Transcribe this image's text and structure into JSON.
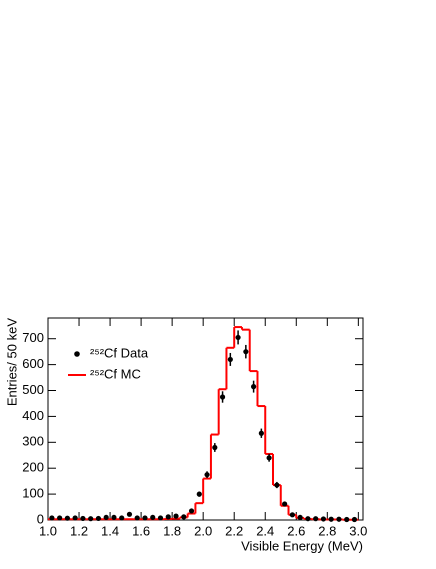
{
  "chart_data": {
    "type": "histogram",
    "xlabel": "Visible Energy (MeV)",
    "ylabel": "Entries/ 50 keV",
    "bins": [
      1.0,
      1.05,
      1.1,
      1.15,
      1.2,
      1.25,
      1.3,
      1.35,
      1.4,
      1.45,
      1.5,
      1.55,
      1.6,
      1.65,
      1.7,
      1.75,
      1.8,
      1.85,
      1.9,
      1.95,
      2.0,
      2.05,
      2.1,
      2.15,
      2.2,
      2.25,
      2.3,
      2.35,
      2.4,
      2.45,
      2.5,
      2.55,
      2.6,
      2.65,
      2.7,
      2.75,
      2.8,
      2.85,
      2.9,
      2.95,
      3.0
    ],
    "series": [
      {
        "name": "²⁵²Cf Data",
        "color": "#000000",
        "style": "points",
        "values": [
          8,
          8,
          7,
          8,
          6,
          5,
          6,
          10,
          10,
          8,
          22,
          8,
          8,
          10,
          8,
          12,
          15,
          12,
          35,
          100,
          175,
          280,
          475,
          620,
          705,
          650,
          515,
          335,
          240,
          135,
          62,
          20,
          10,
          5,
          5,
          4,
          3,
          3,
          2,
          2
        ],
        "errors": [
          3,
          3,
          3,
          3,
          2,
          2,
          2,
          3,
          3,
          3,
          5,
          3,
          3,
          3,
          3,
          3,
          4,
          3,
          6,
          10,
          13,
          17,
          22,
          25,
          27,
          26,
          23,
          18,
          15,
          12,
          8,
          4,
          3,
          2,
          2,
          2,
          2,
          2,
          1,
          1
        ]
      },
      {
        "name": "²⁵²Cf MC",
        "color": "#ff0000",
        "style": "step",
        "values": [
          3,
          3,
          3,
          3,
          3,
          3,
          3,
          3,
          3,
          3,
          3,
          3,
          3,
          3,
          3,
          4,
          5,
          10,
          25,
          65,
          160,
          330,
          505,
          665,
          745,
          735,
          575,
          440,
          255,
          135,
          55,
          20,
          8,
          4,
          3,
          2,
          2,
          2,
          1,
          1
        ]
      }
    ],
    "xlim": [
      1.0,
      3.03
    ],
    "ylim": [
      0,
      780
    ],
    "xticks": [
      {
        "value": 1.0,
        "label": "1.0"
      },
      {
        "value": 1.2,
        "label": "1.2"
      },
      {
        "value": 1.4,
        "label": "1.4"
      },
      {
        "value": 1.6,
        "label": "1.6"
      },
      {
        "value": 1.8,
        "label": "1.8"
      },
      {
        "value": 2.0,
        "label": "2.0"
      },
      {
        "value": 2.2,
        "label": "2.2"
      },
      {
        "value": 2.4,
        "label": "2.4"
      },
      {
        "value": 2.6,
        "label": "2.6"
      },
      {
        "value": 2.8,
        "label": "2.8"
      },
      {
        "value": 3.0,
        "label": "3.0"
      }
    ],
    "yticks": [
      0,
      100,
      200,
      300,
      400,
      500,
      600,
      700
    ],
    "legend": "upper-left",
    "grid": false
  }
}
